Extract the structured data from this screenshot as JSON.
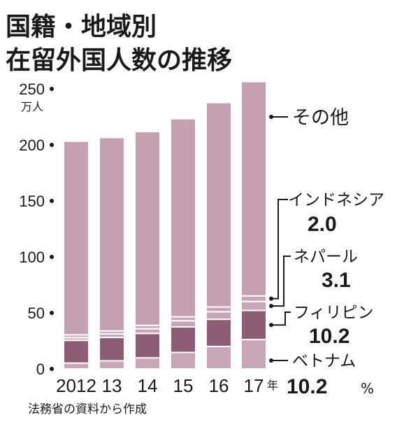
{
  "title_lines": [
    "国籍・地域別",
    "在留外国人数の推移"
  ],
  "source": "法務省の資料から作成",
  "chart_data": {
    "type": "bar",
    "stacked": true,
    "title": "国籍・地域別 在留外国人数の推移",
    "y_unit": "万人",
    "x_unit": "年",
    "ylim": [
      0,
      250
    ],
    "yticks": [
      0,
      50,
      100,
      150,
      200,
      250
    ],
    "categories": [
      "2012",
      "13",
      "14",
      "15",
      "16",
      "17"
    ],
    "series": [
      {
        "name": "ベトナム",
        "values": [
          5.2,
          7.2,
          9.9,
          14.7,
          20.0,
          26.2
        ]
      },
      {
        "name": "フィリピン",
        "values": [
          20.3,
          20.9,
          21.8,
          22.8,
          24.3,
          26.0
        ]
      },
      {
        "name": "ネパール",
        "values": [
          2.4,
          3.2,
          4.2,
          5.5,
          6.7,
          8.0
        ]
      },
      {
        "name": "インドネシア",
        "values": [
          2.5,
          2.6,
          3.0,
          3.5,
          4.3,
          5.0
        ]
      },
      {
        "name": "その他",
        "values": [
          172.9,
          172.7,
          173.0,
          176.9,
          182.5,
          191.3
        ]
      }
    ],
    "series_colors": [
      "#c9a6b5",
      "#8c5d74",
      "#c9a6b5",
      "#c9a6b5",
      "#c4a0b1"
    ],
    "legend_values": {
      "インドネシア": "2.0",
      "ネパール": "3.1",
      "フィリピン": "10.2",
      "ベトナム": "10.2"
    },
    "legend_value_unit": "%"
  }
}
